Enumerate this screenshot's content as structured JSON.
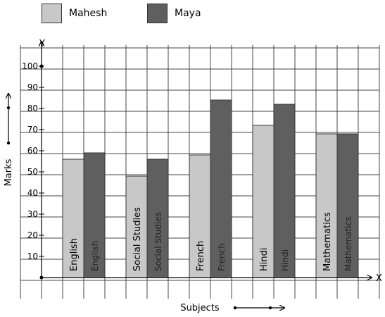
{
  "chart_data": {
    "type": "bar",
    "title": "",
    "xlabel": "Subjects",
    "ylabel": "Marks",
    "x_axis_letter": "X",
    "y_axis_letter": "Y",
    "categories": [
      "English",
      "Social Studies",
      "French",
      "Hindi",
      "Mathematics"
    ],
    "series": [
      {
        "name": "Mahesh",
        "values": [
          56,
          48,
          58,
          72,
          68
        ],
        "color": "#c8c8c8"
      },
      {
        "name": "Maya",
        "values": [
          59,
          56,
          84,
          82,
          68
        ],
        "color": "#5f5f5f"
      }
    ],
    "ylim": [
      0,
      100
    ],
    "yticks": [
      10,
      20,
      30,
      40,
      50,
      60,
      70,
      80,
      90,
      100
    ],
    "grid": true,
    "legend_position": "top-left"
  }
}
